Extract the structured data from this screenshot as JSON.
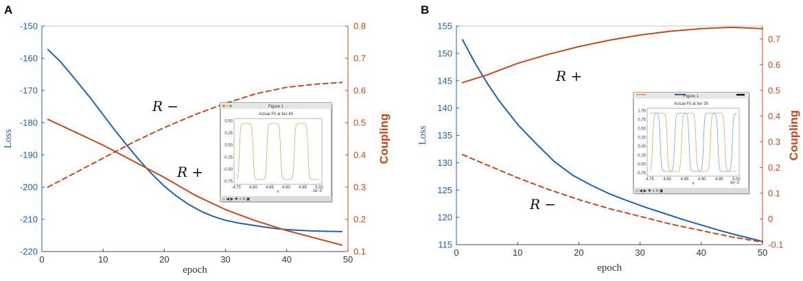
{
  "colors": {
    "loss": "#1f5fad",
    "coupling": "#c8461a",
    "axis": "#444444",
    "inset_blue": "#6aa6d6",
    "inset_orange": "#e8a35c"
  },
  "chart_data": [
    {
      "panel": "A",
      "type": "line",
      "xlabel": "epoch",
      "ylabel_left": "Loss",
      "ylabel_right": "Coupling",
      "xlim": [
        0,
        50
      ],
      "ylim_left": [
        -220,
        -150
      ],
      "ylim_right": [
        0.1,
        0.8
      ],
      "x_ticks": [
        "0",
        "10",
        "20",
        "30",
        "40",
        "50"
      ],
      "y_ticks_left": [
        "-150",
        "-160",
        "-170",
        "-180",
        "-190",
        "-200",
        "-210",
        "-220"
      ],
      "y_ticks_right": [
        "0.8",
        "0.7",
        "0.6",
        "0.5",
        "0.4",
        "0.3",
        "0.2",
        "0.1"
      ],
      "series": [
        {
          "name": "Loss",
          "axis": "left",
          "style": "solid",
          "color": "loss",
          "x": [
            1,
            3,
            5,
            8,
            10,
            12,
            14,
            16,
            18,
            20,
            22,
            24,
            26,
            28,
            30,
            32,
            34,
            36,
            38,
            40,
            42,
            44,
            46,
            49
          ],
          "y": [
            -157.3,
            -161,
            -165.5,
            -172.5,
            -177.5,
            -182.5,
            -187.3,
            -191.8,
            -196,
            -199.7,
            -202.8,
            -205.4,
            -207.5,
            -209.1,
            -210.3,
            -211.1,
            -211.7,
            -212.3,
            -212.8,
            -213.2,
            -213.4,
            -213.6,
            -213.7,
            -213.8
          ]
        },
        {
          "name": "R+",
          "axis": "right",
          "style": "solid",
          "color": "coupling",
          "x": [
            1,
            5,
            10,
            15,
            20,
            25,
            30,
            35,
            40,
            45,
            49
          ],
          "y": [
            0.51,
            0.475,
            0.43,
            0.38,
            0.33,
            0.275,
            0.23,
            0.195,
            0.165,
            0.14,
            0.12
          ]
        },
        {
          "name": "R-",
          "axis": "right",
          "style": "dashed",
          "color": "coupling",
          "x": [
            1,
            5,
            10,
            15,
            20,
            25,
            30,
            35,
            40,
            45,
            49
          ],
          "y": [
            0.3,
            0.34,
            0.39,
            0.44,
            0.485,
            0.525,
            0.56,
            0.59,
            0.61,
            0.62,
            0.625
          ]
        }
      ],
      "annotations": [
        "R −",
        "R +"
      ],
      "inset": {
        "window_title": "Figure 1",
        "plot_title": "Actual Fit at tier 80",
        "y_ticks": [
          "0.50",
          "0.25",
          "0.00",
          "-0.25",
          "-0.50",
          "-0.75"
        ],
        "x_ticks": [
          "4.75",
          "4.80",
          "4.85",
          "4.90",
          "4.95",
          "5.00"
        ],
        "x_label": "x",
        "x_unit": "1e−3",
        "toolbar": "⌂ ◀ ▶ ✚ ⌕ ≡ ▣"
      }
    },
    {
      "panel": "B",
      "type": "line",
      "xlabel": "epoch",
      "ylabel_left": "Loss",
      "ylabel_right": "Coupling",
      "xlim": [
        0,
        50
      ],
      "ylim_left": [
        115,
        155
      ],
      "ylim_right": [
        -0.1,
        0.75
      ],
      "x_ticks": [
        "0",
        "10",
        "20",
        "30",
        "40",
        "50"
      ],
      "y_ticks_left": [
        "155",
        "150",
        "145",
        "140",
        "135",
        "130",
        "125",
        "120",
        "115"
      ],
      "y_ticks_right": [
        "0.7",
        "0.6",
        "0.5",
        "0.4",
        "0.3",
        "0.2",
        "0.1",
        "0",
        "-0.1"
      ],
      "series": [
        {
          "name": "Loss",
          "axis": "left",
          "style": "solid",
          "color": "loss",
          "x": [
            1,
            3,
            5,
            7,
            10,
            13,
            16,
            19,
            22,
            25,
            28,
            31,
            34,
            37,
            40,
            43,
            46,
            50
          ],
          "y": [
            152.5,
            148.3,
            144.6,
            141.3,
            137,
            133.5,
            130.2,
            127.7,
            125.9,
            124.3,
            123,
            121.8,
            120.7,
            119.6,
            118.6,
            117.6,
            116.7,
            115.6
          ]
        },
        {
          "name": "R+",
          "axis": "right",
          "style": "solid",
          "color": "coupling",
          "x": [
            1,
            5,
            10,
            15,
            20,
            25,
            30,
            35,
            40,
            45,
            50
          ],
          "y": [
            0.53,
            0.56,
            0.605,
            0.64,
            0.67,
            0.695,
            0.715,
            0.73,
            0.74,
            0.745,
            0.74
          ]
        },
        {
          "name": "R-",
          "axis": "right",
          "style": "dashed",
          "color": "coupling",
          "x": [
            1,
            5,
            10,
            15,
            20,
            25,
            30,
            35,
            40,
            45,
            50
          ],
          "y": [
            0.25,
            0.21,
            0.16,
            0.115,
            0.075,
            0.04,
            0.01,
            -0.02,
            -0.045,
            -0.07,
            -0.09
          ]
        }
      ],
      "annotations": [
        "R +",
        "R −"
      ],
      "inset": {
        "window_title": "Figure 1",
        "plot_title": "Actual Fit at tier 30",
        "y_ticks": [
          "1.00",
          "0.75",
          "0.50",
          "0.25",
          "0.00",
          "-0.25",
          "-0.50",
          "-0.75"
        ],
        "x_ticks": [
          "4.75",
          "4.80",
          "4.85",
          "4.90",
          "4.95",
          "5.00"
        ],
        "x_label": "x",
        "x_unit": "1e−3",
        "toolbar": "⌂ ◀ ▶ ✚ ⌕ ≡ ▣"
      }
    }
  ]
}
